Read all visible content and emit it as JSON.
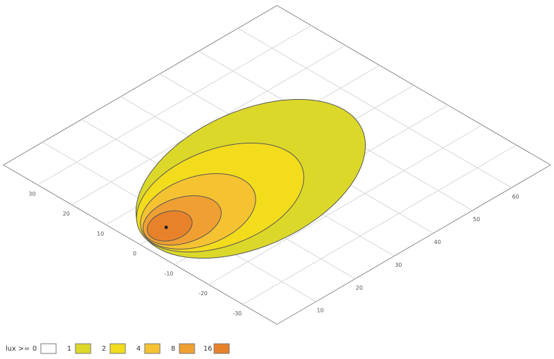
{
  "chart_data": {
    "type": "contour",
    "xlim": [
      0,
      70
    ],
    "xticks": [
      10,
      20,
      30,
      40,
      50,
      60
    ],
    "ylim": [
      -40,
      40
    ],
    "yticks": [
      30,
      20,
      10,
      0,
      -10,
      -20,
      -30
    ],
    "grid": true,
    "legend_title": "lux >=",
    "levels": [
      0,
      1,
      2,
      4,
      8,
      16
    ],
    "colors": [
      "#ffffff",
      "#dcd82a",
      "#f2dc1c",
      "#f5c232",
      "#f0a032",
      "#e8822a"
    ]
  }
}
